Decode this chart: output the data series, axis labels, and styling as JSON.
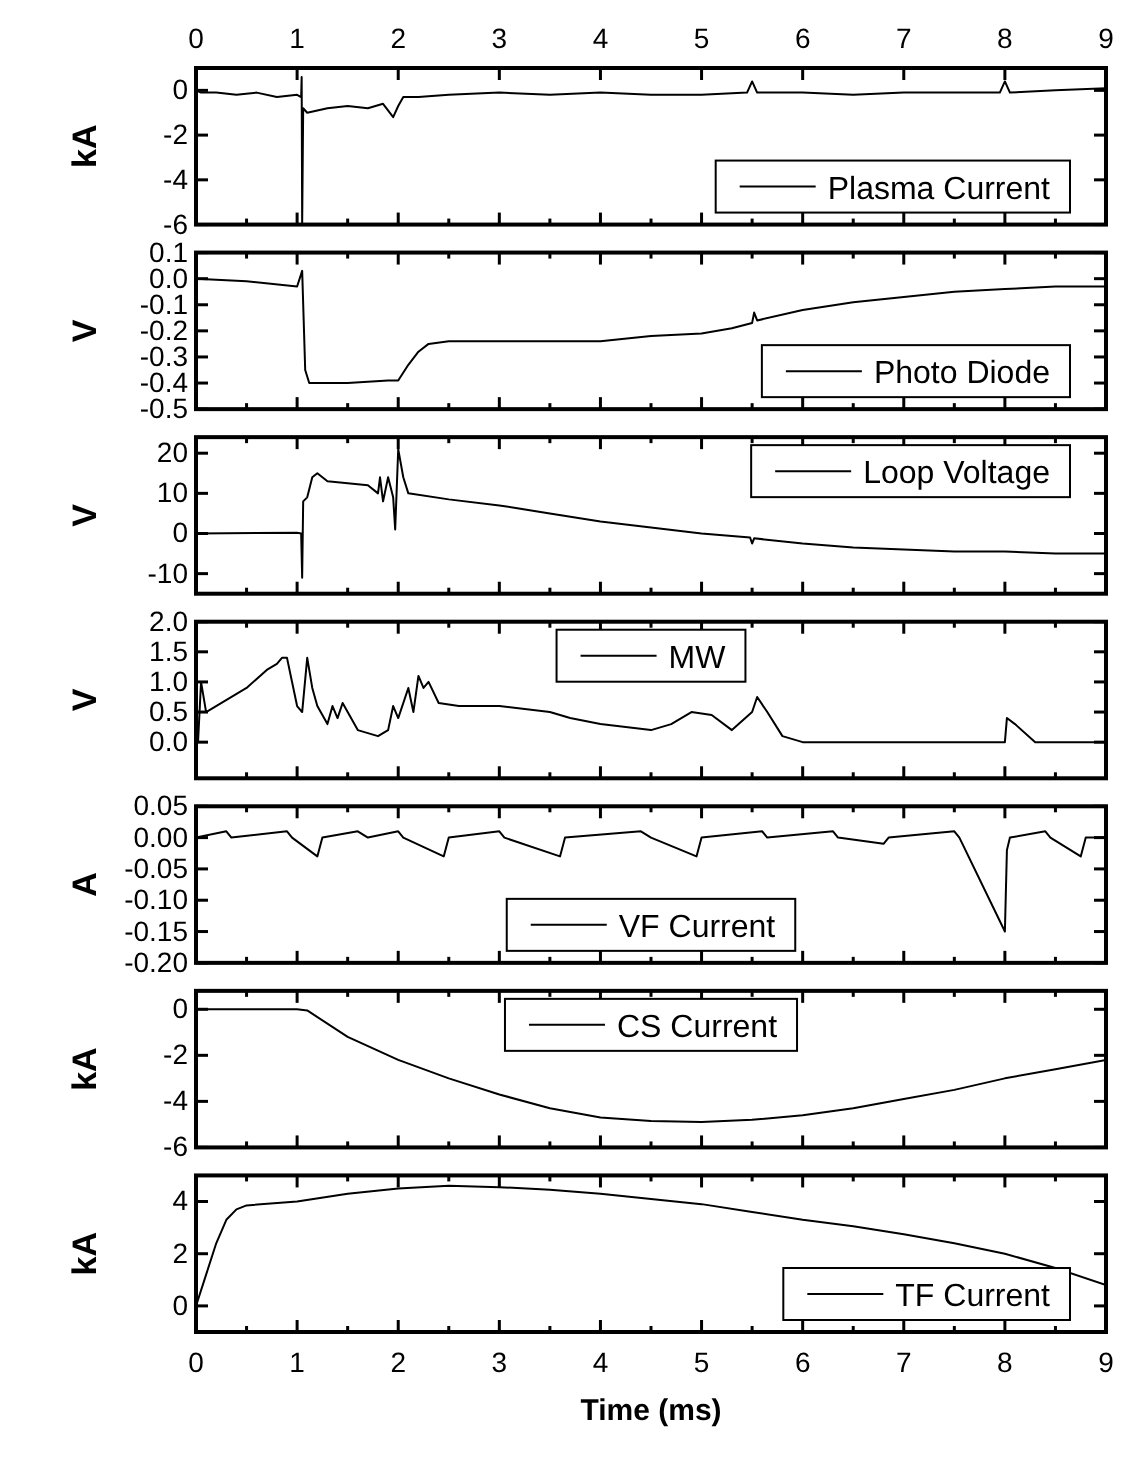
{
  "chart_data": [
    {
      "type": "line",
      "ylabel": "kA",
      "xlim": [
        0,
        9
      ],
      "ylim": [
        -6,
        1
      ],
      "yticks": [
        -6,
        -4,
        -2,
        0
      ],
      "xticks": [
        0,
        {
          "value": 0.5,
          "label": null
        },
        1,
        {
          "value": 1.5,
          "label": null
        },
        2,
        {
          "value": 2.5,
          "label": null
        },
        3,
        {
          "value": 3.5,
          "label": null
        },
        4,
        {
          "value": 4.5,
          "label": null
        },
        5,
        {
          "value": 5.5,
          "label": null
        },
        6,
        {
          "value": 6.5,
          "label": null
        },
        7,
        {
          "value": 7.5,
          "label": null
        },
        8,
        {
          "value": 8.5,
          "label": null
        },
        9
      ],
      "x2lim": [
        0,
        9
      ],
      "x2ticks": [
        0,
        1,
        2,
        3,
        4,
        5,
        6,
        7,
        8,
        9
      ],
      "tick_labels": "y",
      "legend": "bottom right",
      "series": [
        {
          "name": "Plasma Current",
          "color": "#000000",
          "x": [
            0,
            0.05,
            0.2,
            0.4,
            0.6,
            0.8,
            1.0,
            1.04,
            1.045,
            1.05,
            1.06,
            1.1,
            1.3,
            1.5,
            1.7,
            1.85,
            1.95,
            2.0,
            2.05,
            2.2,
            2.5,
            3,
            3.5,
            4,
            4.5,
            5,
            5.45,
            5.5,
            5.55,
            6,
            6.5,
            7,
            7.5,
            7.95,
            8.0,
            8.05,
            8.5,
            9
          ],
          "values": [
            0,
            -0.1,
            -0.1,
            -0.2,
            -0.1,
            -0.3,
            -0.2,
            -0.3,
            0.6,
            -6,
            -0.8,
            -1.0,
            -0.8,
            -0.7,
            -0.8,
            -0.6,
            -1.2,
            -0.7,
            -0.3,
            -0.3,
            -0.2,
            -0.1,
            -0.2,
            -0.1,
            -0.2,
            -0.2,
            -0.1,
            0.4,
            -0.1,
            -0.1,
            -0.2,
            -0.1,
            -0.1,
            -0.1,
            0.4,
            -0.1,
            0,
            0.1
          ]
        }
      ]
    },
    {
      "type": "line",
      "ylabel": "V",
      "xlim": [
        0,
        9
      ],
      "ylim": [
        -0.5,
        0.1
      ],
      "yticks": [
        {
          "value": -0.5,
          "label": "-0.5"
        },
        {
          "value": -0.4,
          "label": "-0.4"
        },
        {
          "value": -0.3,
          "label": "-0.3"
        },
        {
          "value": -0.2,
          "label": "-0.2"
        },
        {
          "value": -0.1,
          "label": "-0.1"
        },
        {
          "value": 0,
          "label": "0.0"
        },
        {
          "value": 0.1,
          "label": "0.1"
        }
      ],
      "xticks": [
        0,
        {
          "value": 0.5,
          "label": null
        },
        1,
        {
          "value": 1.5,
          "label": null
        },
        2,
        {
          "value": 2.5,
          "label": null
        },
        3,
        {
          "value": 3.5,
          "label": null
        },
        4,
        {
          "value": 4.5,
          "label": null
        },
        5,
        {
          "value": 5.5,
          "label": null
        },
        6,
        {
          "value": 6.5,
          "label": null
        },
        7,
        {
          "value": 7.5,
          "label": null
        },
        8,
        {
          "value": 8.5,
          "label": null
        },
        9
      ],
      "tick_labels": "y",
      "legend": "bottom right",
      "series": [
        {
          "name": "Photo Diode",
          "color": "#000000",
          "x": [
            0,
            0.5,
            1.0,
            1.05,
            1.08,
            1.12,
            1.5,
            1.9,
            2.0,
            2.1,
            2.2,
            2.3,
            2.5,
            3,
            3.5,
            4,
            4.5,
            5,
            5.3,
            5.5,
            5.52,
            5.55,
            6,
            6.5,
            7,
            7.5,
            8,
            8.5,
            9
          ],
          "values": [
            0,
            -0.01,
            -0.03,
            0.03,
            -0.35,
            -0.4,
            -0.4,
            -0.39,
            -0.39,
            -0.33,
            -0.28,
            -0.25,
            -0.24,
            -0.24,
            -0.24,
            -0.24,
            -0.22,
            -0.21,
            -0.19,
            -0.17,
            -0.13,
            -0.16,
            -0.12,
            -0.09,
            -0.07,
            -0.05,
            -0.04,
            -0.03,
            -0.03
          ]
        }
      ]
    },
    {
      "type": "line",
      "ylabel": "V",
      "xlim": [
        0,
        9
      ],
      "ylim": [
        -15,
        24
      ],
      "yticks": [
        -10,
        0,
        10,
        20
      ],
      "xticks": [
        0,
        {
          "value": 0.5,
          "label": null
        },
        1,
        {
          "value": 1.5,
          "label": null
        },
        2,
        {
          "value": 2.5,
          "label": null
        },
        3,
        {
          "value": 3.5,
          "label": null
        },
        4,
        {
          "value": 4.5,
          "label": null
        },
        5,
        {
          "value": 5.5,
          "label": null
        },
        6,
        {
          "value": 6.5,
          "label": null
        },
        7,
        {
          "value": 7.5,
          "label": null
        },
        8,
        {
          "value": 8.5,
          "label": null
        },
        9
      ],
      "tick_labels": "y",
      "legend": "top right",
      "series": [
        {
          "name": "Loop Voltage",
          "color": "#000000",
          "x": [
            0,
            1.0,
            1.04,
            1.05,
            1.06,
            1.1,
            1.15,
            1.2,
            1.3,
            1.5,
            1.7,
            1.8,
            1.82,
            1.85,
            1.9,
            1.95,
            1.97,
            2.0,
            2.05,
            2.1,
            2.5,
            3,
            3.5,
            4,
            4.5,
            5,
            5.48,
            5.5,
            5.52,
            6,
            6.5,
            7,
            7.5,
            8,
            8.5,
            9
          ],
          "values": [
            0,
            0.2,
            0,
            -11,
            8,
            9,
            14,
            15,
            13,
            12.5,
            12,
            10,
            14,
            8,
            14,
            9,
            1,
            21,
            14,
            10,
            8.5,
            7,
            5,
            3,
            1.5,
            0,
            -1,
            -2.5,
            -1.2,
            -2.5,
            -3.5,
            -4,
            -4.5,
            -4.5,
            -5,
            -5
          ]
        }
      ]
    },
    {
      "type": "line",
      "ylabel": "V",
      "xlim": [
        0,
        9
      ],
      "ylim": [
        -0.6,
        2.0
      ],
      "yticks": [
        {
          "value": 0,
          "label": "0.0"
        },
        {
          "value": 0.5,
          "label": "0.5"
        },
        {
          "value": 1,
          "label": "1.0"
        },
        {
          "value": 1.5,
          "label": "1.5"
        },
        {
          "value": 2,
          "label": "2.0"
        }
      ],
      "xticks": [
        0,
        {
          "value": 0.5,
          "label": null
        },
        1,
        {
          "value": 1.5,
          "label": null
        },
        2,
        {
          "value": 2.5,
          "label": null
        },
        3,
        {
          "value": 3.5,
          "label": null
        },
        4,
        {
          "value": 4.5,
          "label": null
        },
        5,
        {
          "value": 5.5,
          "label": null
        },
        6,
        {
          "value": 6.5,
          "label": null
        },
        7,
        {
          "value": 7.5,
          "label": null
        },
        8,
        {
          "value": 8.5,
          "label": null
        },
        9
      ],
      "tick_labels": "y",
      "legend": "top",
      "series": [
        {
          "name": "MW",
          "color": "#000000",
          "x": [
            0,
            0.02,
            0.05,
            0.1,
            0.5,
            0.7,
            0.8,
            0.85,
            0.9,
            0.95,
            1.0,
            1.05,
            1.1,
            1.15,
            1.2,
            1.3,
            1.35,
            1.4,
            1.45,
            1.5,
            1.6,
            1.8,
            1.9,
            1.95,
            2.0,
            2.1,
            2.15,
            2.2,
            2.25,
            2.3,
            2.4,
            2.6,
            3,
            3.5,
            3.7,
            4,
            4.5,
            4.7,
            4.9,
            5.1,
            5.3,
            5.5,
            5.55,
            5.65,
            5.8,
            6,
            7,
            8,
            8.02,
            8.1,
            8.3,
            9
          ],
          "values": [
            0,
            0,
            1.0,
            0.5,
            0.9,
            1.2,
            1.3,
            1.4,
            1.4,
            1.0,
            0.6,
            0.5,
            1.4,
            0.9,
            0.6,
            0.3,
            0.6,
            0.4,
            0.65,
            0.5,
            0.2,
            0.1,
            0.2,
            0.6,
            0.4,
            0.9,
            0.5,
            1.1,
            0.9,
            1.0,
            0.65,
            0.6,
            0.6,
            0.5,
            0.4,
            0.3,
            0.2,
            0.3,
            0.5,
            0.45,
            0.2,
            0.5,
            0.75,
            0.5,
            0.1,
            0,
            0,
            0,
            0.4,
            0.3,
            0,
            0
          ]
        }
      ]
    },
    {
      "type": "line",
      "ylabel": "A",
      "xlim": [
        0,
        9
      ],
      "ylim": [
        -0.2,
        0.05
      ],
      "yticks": [
        {
          "value": -0.2,
          "label": "-0.20"
        },
        {
          "value": -0.15,
          "label": "-0.15"
        },
        {
          "value": -0.1,
          "label": "-0.10"
        },
        {
          "value": -0.05,
          "label": "-0.05"
        },
        {
          "value": 0,
          "label": "0.00"
        },
        {
          "value": 0.05,
          "label": "0.05"
        }
      ],
      "xticks": [
        0,
        {
          "value": 0.5,
          "label": null
        },
        1,
        {
          "value": 1.5,
          "label": null
        },
        2,
        {
          "value": 2.5,
          "label": null
        },
        3,
        {
          "value": 3.5,
          "label": null
        },
        4,
        {
          "value": 4.5,
          "label": null
        },
        5,
        {
          "value": 5.5,
          "label": null
        },
        6,
        {
          "value": 6.5,
          "label": null
        },
        7,
        {
          "value": 7.5,
          "label": null
        },
        8,
        {
          "value": 8.5,
          "label": null
        },
        9
      ],
      "tick_labels": "y",
      "legend": "bottom",
      "series": [
        {
          "name": "VF Current",
          "color": "#000000",
          "x": [
            0,
            0.3,
            0.35,
            0.9,
            0.95,
            1.2,
            1.25,
            1.6,
            1.7,
            2.0,
            2.05,
            2.45,
            2.5,
            3.0,
            3.05,
            3.6,
            3.65,
            4.4,
            4.5,
            4.95,
            5.0,
            5.6,
            5.65,
            6.3,
            6.35,
            6.8,
            6.85,
            7.5,
            7.55,
            8.0,
            8.02,
            8.05,
            8.4,
            8.45,
            8.75,
            8.8,
            9
          ],
          "values": [
            0,
            0.01,
            0,
            0.01,
            0,
            -0.03,
            0,
            0.01,
            0,
            0.01,
            0,
            -0.03,
            0,
            0.01,
            0,
            -0.03,
            0,
            0.01,
            0,
            -0.03,
            0,
            0.01,
            0,
            0.01,
            0,
            -0.01,
            0,
            0.01,
            0,
            -0.15,
            -0.02,
            0,
            0.01,
            0,
            -0.03,
            0,
            0
          ]
        }
      ]
    },
    {
      "type": "line",
      "ylabel": "kA",
      "xlim": [
        0,
        9
      ],
      "ylim": [
        -6,
        0.8
      ],
      "yticks": [
        -6,
        -4,
        -2,
        0
      ],
      "xticks": [
        0,
        {
          "value": 0.5,
          "label": null
        },
        1,
        {
          "value": 1.5,
          "label": null
        },
        2,
        {
          "value": 2.5,
          "label": null
        },
        3,
        {
          "value": 3.5,
          "label": null
        },
        4,
        {
          "value": 4.5,
          "label": null
        },
        5,
        {
          "value": 5.5,
          "label": null
        },
        6,
        {
          "value": 6.5,
          "label": null
        },
        7,
        {
          "value": 7.5,
          "label": null
        },
        8,
        {
          "value": 8.5,
          "label": null
        },
        9
      ],
      "tick_labels": "y",
      "legend": "top",
      "series": [
        {
          "name": "CS Current",
          "color": "#000000",
          "x": [
            0,
            1,
            1.1,
            1.5,
            2,
            2.5,
            3,
            3.5,
            4,
            4.5,
            5,
            5.5,
            6,
            6.5,
            7,
            7.5,
            8,
            8.5,
            9
          ],
          "values": [
            0,
            0,
            -0.05,
            -1.2,
            -2.2,
            -3.0,
            -3.7,
            -4.3,
            -4.7,
            -4.85,
            -4.9,
            -4.8,
            -4.6,
            -4.3,
            -3.9,
            -3.5,
            -3.0,
            -2.6,
            -2.2
          ]
        }
      ]
    },
    {
      "type": "line",
      "ylabel": "kA",
      "xlabel": "Time (ms)",
      "xlim": [
        0,
        9
      ],
      "ylim": [
        -1,
        5
      ],
      "yticks": [
        0,
        2,
        4
      ],
      "xticks": [
        0,
        {
          "value": 0.5,
          "label": null
        },
        1,
        {
          "value": 1.5,
          "label": null
        },
        2,
        {
          "value": 2.5,
          "label": null
        },
        3,
        {
          "value": 3.5,
          "label": null
        },
        4,
        {
          "value": 4.5,
          "label": null
        },
        5,
        {
          "value": 5.5,
          "label": null
        },
        6,
        {
          "value": 6.5,
          "label": null
        },
        7,
        {
          "value": 7.5,
          "label": null
        },
        8,
        {
          "value": 8.5,
          "label": null
        },
        9
      ],
      "legend": "bottom right",
      "series": [
        {
          "name": "TF Current",
          "color": "#000000",
          "x": [
            0,
            0.1,
            0.2,
            0.3,
            0.4,
            0.5,
            1,
            1.5,
            2,
            2.5,
            3,
            3.5,
            4,
            4.5,
            5,
            5.5,
            6,
            6.5,
            7,
            7.5,
            8,
            8.5,
            9
          ],
          "values": [
            0,
            1.2,
            2.4,
            3.3,
            3.7,
            3.85,
            4.0,
            4.3,
            4.5,
            4.6,
            4.55,
            4.45,
            4.3,
            4.1,
            3.9,
            3.6,
            3.3,
            3.05,
            2.75,
            2.4,
            2.0,
            1.45,
            0.8
          ]
        }
      ]
    }
  ]
}
